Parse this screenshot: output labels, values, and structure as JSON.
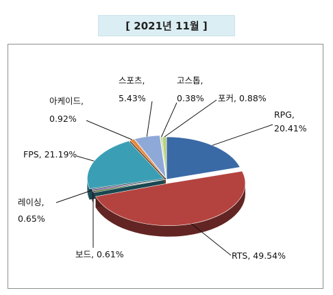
{
  "title": "[ 2021년 11월 ]",
  "chart_data": {
    "type": "pie",
    "title": "[ 2021년 11월 ]",
    "slices": [
      {
        "name": "RPG",
        "label_line1": "RPG,",
        "label_line2": "20.41%",
        "value": 20.41,
        "color": "#3a6aa6"
      },
      {
        "name": "RTS",
        "label_line1": "RTS, 49.54%",
        "label_line2": "",
        "value": 49.54,
        "color": "#b4433f"
      },
      {
        "name": "보드",
        "label_line1": "보드, 0.61%",
        "label_line2": "",
        "value": 0.61,
        "color": "#4f6b2c"
      },
      {
        "name": "레이싱",
        "label_line1": "레이싱,",
        "label_line2": "0.65%",
        "value": 0.65,
        "color": "#6b4e8c"
      },
      {
        "name": "FPS",
        "label_line1": "FPS, 21.19%",
        "label_line2": "",
        "value": 21.19,
        "color": "#3a9fb5"
      },
      {
        "name": "아케이드",
        "label_line1": "아케이드,",
        "label_line2": "0.92%",
        "value": 0.92,
        "color": "#e6873a"
      },
      {
        "name": "스포츠",
        "label_line1": "스포츠,",
        "label_line2": "5.43%",
        "value": 5.43,
        "color": "#8ea8d8"
      },
      {
        "name": "고스톱",
        "label_line1": "고스톱,",
        "label_line2": "0.38%",
        "value": 0.38,
        "color": "#c4d7a0"
      },
      {
        "name": "포커",
        "label_line1": "포커, 0.88%",
        "label_line2": "",
        "value": 0.88,
        "color": "#b7d07e"
      }
    ]
  }
}
